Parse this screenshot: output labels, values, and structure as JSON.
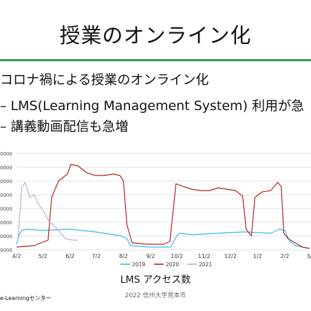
{
  "slide": {
    "title": "授業のオンライン化",
    "bullet_main": "コロナ禍による授業のオンライン化",
    "bullet_sub1": "– LMS(Learning Management System) 利用が急",
    "bullet_sub2": "– 講義動画配信も急増",
    "footer_left": "e-Learningセンター",
    "footer_center": "2022 信州大学見本市"
  },
  "colors": {
    "accent_rule": "#2e9a4a",
    "series_2019": "#35b6e6",
    "series_2020": "#b51c1c",
    "series_2021": "#c4a8dc",
    "grid": "#d9d9d9"
  },
  "chart_data": {
    "type": "line",
    "caption": "LMS アクセス数",
    "y_tick_labels": [
      "0000",
      "0000",
      "0000",
      "0000",
      "0000",
      "0000",
      "0000",
      "0000"
    ],
    "ylim": [
      0,
      7
    ],
    "grid": true,
    "legend_position": "bottom",
    "x_tick_labels": [
      "4/2",
      "5/2",
      "6/2",
      "7/2",
      "8/2",
      "9/2",
      "10/2",
      "11/2",
      "12/2",
      "1/2",
      "2/2",
      "3/"
    ],
    "x_days": [
      0,
      30,
      61,
      91,
      122,
      153,
      183,
      214,
      244,
      275,
      306,
      334
    ],
    "series": [
      {
        "name": "2019",
        "color_key": "series_2019",
        "points": [
          [
            0,
            0.4
          ],
          [
            3,
            1.1
          ],
          [
            6,
            1.4
          ],
          [
            12,
            1.5
          ],
          [
            30,
            1.4
          ],
          [
            60,
            1.5
          ],
          [
            90,
            1.3
          ],
          [
            120,
            1.0
          ],
          [
            126,
            0.8
          ],
          [
            130,
            0.3
          ],
          [
            150,
            0.2
          ],
          [
            176,
            0.2
          ],
          [
            182,
            0.9
          ],
          [
            186,
            1.2
          ],
          [
            200,
            1.1
          ],
          [
            230,
            1.2
          ],
          [
            260,
            1.3
          ],
          [
            290,
            1.2
          ],
          [
            300,
            1.5
          ],
          [
            306,
            1.4
          ],
          [
            312,
            0.6
          ],
          [
            318,
            0.3
          ],
          [
            334,
            0.1
          ]
        ]
      },
      {
        "name": "2020",
        "color_key": "series_2020",
        "points": [
          [
            0,
            0.2
          ],
          [
            20,
            0.3
          ],
          [
            36,
            0.7
          ],
          [
            40,
            3.8
          ],
          [
            48,
            5.0
          ],
          [
            58,
            5.5
          ],
          [
            62,
            6.2
          ],
          [
            70,
            6.1
          ],
          [
            80,
            5.6
          ],
          [
            90,
            5.4
          ],
          [
            100,
            5.4
          ],
          [
            110,
            5.5
          ],
          [
            118,
            5.4
          ],
          [
            122,
            5.0
          ],
          [
            126,
            1.8
          ],
          [
            132,
            0.5
          ],
          [
            150,
            0.4
          ],
          [
            168,
            0.4
          ],
          [
            175,
            0.6
          ],
          [
            182,
            4.8
          ],
          [
            190,
            4.6
          ],
          [
            200,
            4.4
          ],
          [
            210,
            4.3
          ],
          [
            220,
            4.3
          ],
          [
            230,
            4.5
          ],
          [
            240,
            4.4
          ],
          [
            250,
            4.3
          ],
          [
            258,
            3.9
          ],
          [
            262,
            1.5
          ],
          [
            268,
            1.0
          ],
          [
            272,
            3.8
          ],
          [
            280,
            4.2
          ],
          [
            290,
            4.3
          ],
          [
            298,
            4.9
          ],
          [
            302,
            4.6
          ],
          [
            305,
            1.2
          ],
          [
            310,
            0.8
          ],
          [
            318,
            0.5
          ],
          [
            326,
            0.2
          ],
          [
            334,
            0.1
          ]
        ]
      },
      {
        "name": "2021",
        "color_key": "series_2021",
        "points": [
          [
            2,
            1.0
          ],
          [
            6,
            4.5
          ],
          [
            10,
            4.9
          ],
          [
            15,
            3.8
          ],
          [
            20,
            4.0
          ],
          [
            26,
            3.2
          ],
          [
            30,
            2.9
          ],
          [
            34,
            2.4
          ],
          [
            38,
            2.0
          ],
          [
            42,
            1.8
          ],
          [
            48,
            1.4
          ],
          [
            56,
            0.8
          ],
          [
            64,
            0.7
          ],
          [
            70,
            0.7
          ]
        ]
      }
    ]
  }
}
